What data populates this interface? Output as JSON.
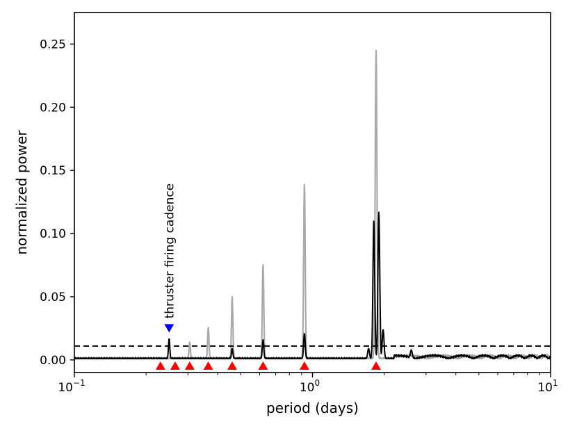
{
  "chart_data": {
    "type": "line",
    "title": "",
    "xlabel": "period (days)",
    "ylabel": "normalized power",
    "x_scale": "log",
    "xlim": [
      0.1,
      10
    ],
    "ylim": [
      -0.01,
      0.275
    ],
    "x_ticks": [
      {
        "value": 0.1,
        "base": "10",
        "exp": "−1"
      },
      {
        "value": 1,
        "base": "10",
        "exp": "0"
      },
      {
        "value": 10,
        "base": "10",
        "exp": "1"
      }
    ],
    "y_ticks": [
      {
        "value": 0.0,
        "label": "0.00"
      },
      {
        "value": 0.05,
        "label": "0.05"
      },
      {
        "value": 0.1,
        "label": "0.10"
      },
      {
        "value": 0.15,
        "label": "0.15"
      },
      {
        "value": 0.2,
        "label": "0.20"
      },
      {
        "value": 0.25,
        "label": "0.25"
      }
    ],
    "threshold": 0.011,
    "series": [
      {
        "color": "#aaaaaa",
        "baseline": 0.001,
        "peaks": [
          {
            "period": 0.305,
            "power": 0.014
          },
          {
            "period": 0.365,
            "power": 0.026
          },
          {
            "period": 0.46,
            "power": 0.05
          },
          {
            "period": 0.62,
            "power": 0.076
          },
          {
            "period": 0.925,
            "power": 0.14
          },
          {
            "period": 1.85,
            "power": 0.245
          }
        ]
      },
      {
        "color": "#000000",
        "baseline": 0.001,
        "peaks": [
          {
            "period": 0.25,
            "power": 0.017
          },
          {
            "period": 0.46,
            "power": 0.009
          },
          {
            "period": 0.62,
            "power": 0.016
          },
          {
            "period": 0.925,
            "power": 0.021
          },
          {
            "period": 1.72,
            "power": 0.009
          },
          {
            "period": 1.81,
            "power": 0.111
          },
          {
            "period": 1.9,
            "power": 0.117
          },
          {
            "period": 1.98,
            "power": 0.024
          },
          {
            "period": 2.6,
            "power": 0.008
          }
        ]
      }
    ],
    "harmonic_markers": {
      "color": "#ff0000",
      "periods": [
        0.23,
        0.265,
        0.305,
        0.365,
        0.46,
        0.62,
        0.925,
        1.85
      ]
    },
    "cadence_marker": {
      "color": "#0000ff",
      "period": 0.25,
      "power": 0.025,
      "label": "thruster firing cadence"
    }
  }
}
